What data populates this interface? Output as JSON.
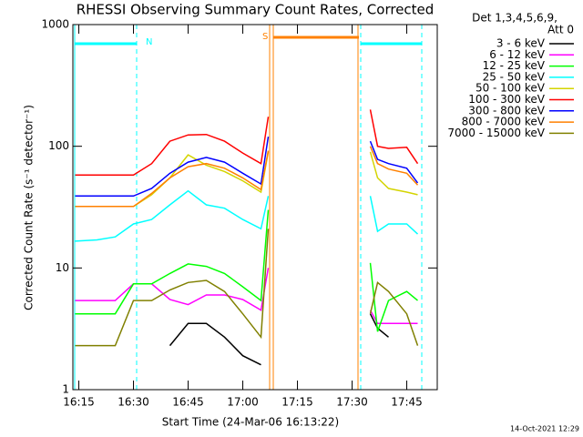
{
  "chart_data": {
    "type": "line",
    "title": "RHESSI Observing Summary Count Rates, Corrected",
    "xlabel": "Start Time (24-Mar-06 16:13:22)",
    "ylabel": "Corrected Count Rate (s⁻¹ detector⁻¹)",
    "legend_header": [
      "Det 1,3,4,5,6,9,",
      "Att 0"
    ],
    "timestamp": "14-Oct-2021 12:29",
    "annotations": [
      "N",
      "S"
    ],
    "log_y": true,
    "legend": "right",
    "xlim": [
      "16:13:22",
      "17:53:22"
    ],
    "xticks": [
      "16:15",
      "16:30",
      "16:45",
      "17:00",
      "17:15",
      "17:30",
      "17:45"
    ],
    "ylim": [
      1,
      1000
    ],
    "yticks": [
      1,
      10,
      100,
      1000
    ],
    "x": [
      "16:14",
      "16:20",
      "16:25",
      "16:30",
      "16:35",
      "16:40",
      "16:45",
      "16:50",
      "16:55",
      "17:00",
      "17:05",
      "17:07",
      "17:20",
      "17:35",
      "17:37",
      "17:40",
      "17:45",
      "17:48"
    ],
    "series": [
      {
        "name": "3 - 6 keV",
        "color": "#000000",
        "values": [
          null,
          null,
          null,
          null,
          null,
          2.3,
          3.5,
          3.5,
          2.7,
          1.9,
          1.6,
          null,
          null,
          4.2,
          3.2,
          2.7,
          null,
          null
        ]
      },
      {
        "name": "6 - 12 keV",
        "color": "#ff00ff",
        "values": [
          5.4,
          5.4,
          5.4,
          7.4,
          7.4,
          5.5,
          5,
          6,
          6,
          5.5,
          4.5,
          10,
          null,
          4.5,
          3.5,
          3.5,
          3.5,
          3.5
        ]
      },
      {
        "name": "12 - 25 keV",
        "color": "#00ff00",
        "values": [
          4.2,
          4.2,
          4.2,
          7.4,
          7.4,
          9,
          10.8,
          10.3,
          9,
          7,
          5.4,
          30,
          null,
          11,
          3,
          5.4,
          6.4,
          5.4
        ]
      },
      {
        "name": "25 - 50 keV",
        "color": "#00ffff",
        "values": [
          16.6,
          17,
          18,
          23,
          25,
          33,
          43,
          33,
          31,
          25,
          21,
          39,
          null,
          39,
          20,
          23,
          23,
          19
        ]
      },
      {
        "name": "50 - 100 keV",
        "color": "#d4d400",
        "values": [
          32,
          32,
          32,
          32,
          40,
          55,
          85,
          70,
          62,
          52,
          42,
          90,
          null,
          90,
          55,
          45,
          42,
          40
        ]
      },
      {
        "name": "100 - 300 keV",
        "color": "#ff0000",
        "values": [
          58,
          58,
          58,
          58,
          72,
          110,
          124,
          125,
          110,
          88,
          72,
          175,
          null,
          200,
          100,
          96,
          98,
          72
        ]
      },
      {
        "name": "300 - 800 keV",
        "color": "#0000ff",
        "values": [
          39,
          39,
          39,
          39,
          45,
          60,
          74,
          81,
          74,
          60,
          49,
          120,
          null,
          110,
          78,
          72,
          66,
          50
        ]
      },
      {
        "name": "800 - 7000 keV",
        "color": "#ff8000",
        "values": [
          32,
          32,
          32,
          32,
          41,
          55,
          68,
          72,
          66,
          55,
          44,
          92,
          null,
          100,
          72,
          65,
          60,
          48
        ]
      },
      {
        "name": "7000 - 15000 keV",
        "color": "#808000",
        "values": [
          2.3,
          2.3,
          2.3,
          5.4,
          5.4,
          6.6,
          7.6,
          7.9,
          6.4,
          4.2,
          2.7,
          21,
          null,
          4.2,
          7.6,
          6.4,
          4.2,
          2.3
        ]
      }
    ]
  }
}
